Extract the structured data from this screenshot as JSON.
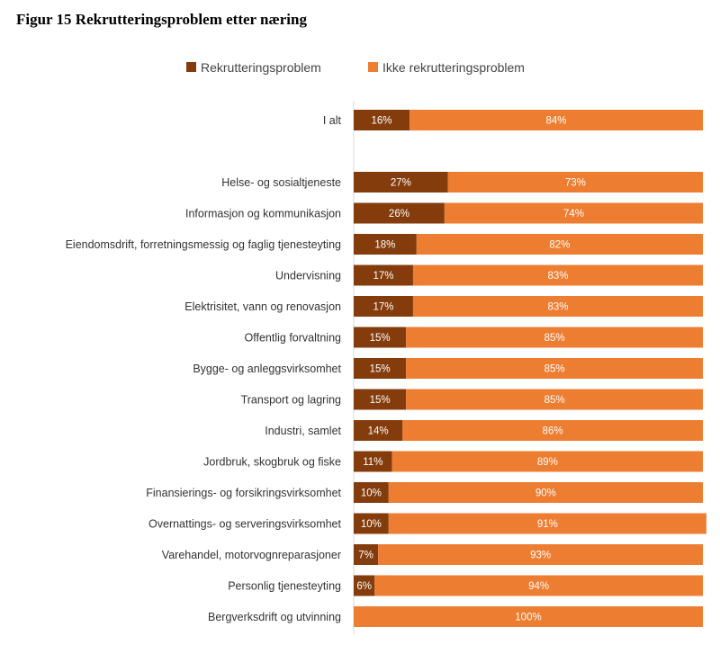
{
  "chart_data": {
    "type": "bar",
    "orientation": "horizontal-stacked-100",
    "title": "Figur 15 Rekrutteringsproblem etter næring",
    "xlabel": "",
    "ylabel": "",
    "xlim": [
      0,
      100
    ],
    "legend_position": "top",
    "colors": {
      "Rekrutteringsproblem": "#843c0c",
      "Ikke rekrutteringsproblem": "#ed7d31"
    },
    "categories": [
      "I alt",
      "Helse- og sosialtjeneste",
      "Informasjon og kommunikasjon",
      "Eiendomsdrift, forretningsmessig og faglig tjenesteyting",
      "Undervisning",
      "Elektrisitet, vann og renovasjon",
      "Offentlig forvaltning",
      "Bygge- og anleggsvirksomhet",
      "Transport og lagring",
      "Industri, samlet",
      "Jordbruk, skogbruk og fiske",
      "Finansierings- og forsikringsvirksomhet",
      "Overnattings- og serveringsvirksomhet",
      "Varehandel, motorvognreparasjoner",
      "Personlig tjenesteyting",
      "Bergverksdrift og utvinning"
    ],
    "series": [
      {
        "name": "Rekrutteringsproblem",
        "values": [
          16,
          27,
          26,
          18,
          17,
          17,
          15,
          15,
          15,
          14,
          11,
          10,
          10,
          7,
          6,
          0
        ],
        "labels": [
          "16%",
          "27%",
          "26%",
          "18%",
          "17%",
          "17%",
          "15%",
          "15%",
          "15%",
          "14%",
          "11%",
          "10%",
          "10%",
          "7%",
          "6%",
          ""
        ]
      },
      {
        "name": "Ikke rekrutteringsproblem",
        "values": [
          84,
          73,
          74,
          82,
          83,
          83,
          85,
          85,
          85,
          86,
          89,
          90,
          91,
          93,
          94,
          100
        ],
        "labels": [
          "84%",
          "73%",
          "74%",
          "82%",
          "83%",
          "83%",
          "85%",
          "85%",
          "85%",
          "86%",
          "89%",
          "90%",
          "91%",
          "93%",
          "94%",
          "100%"
        ]
      }
    ]
  }
}
